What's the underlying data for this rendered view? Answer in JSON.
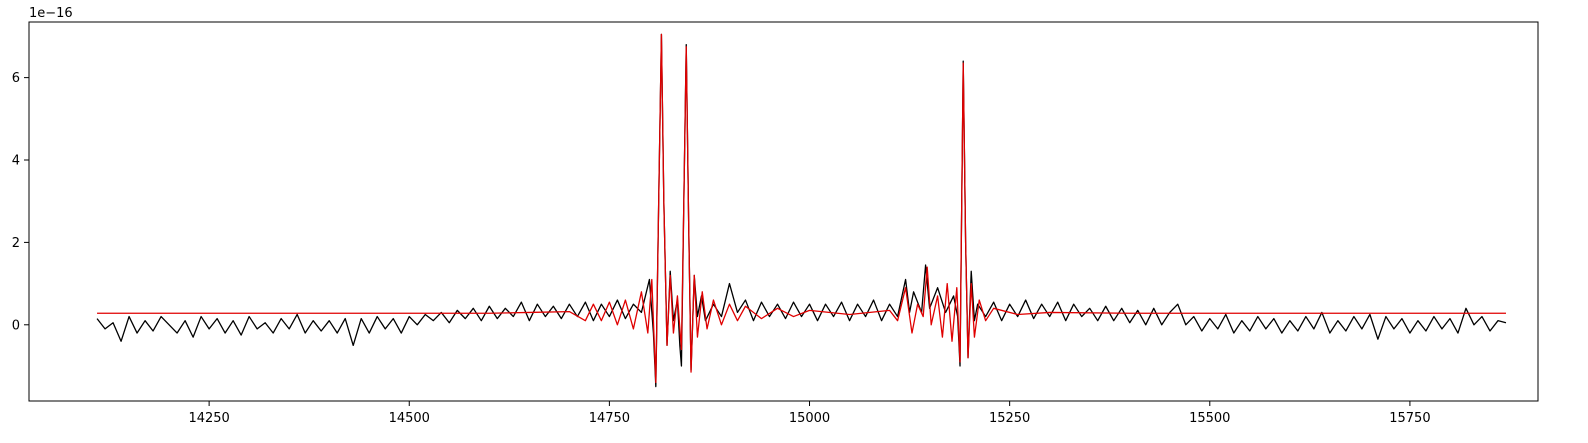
{
  "chart_data": {
    "type": "line",
    "title": "",
    "xlabel": "",
    "ylabel": "",
    "xlim": [
      14025,
      15910
    ],
    "ylim": [
      -1.85,
      7.35
    ],
    "y_offset_label": "1e−16",
    "x_ticks": [
      14250,
      14500,
      14750,
      15000,
      15250,
      15500,
      15750
    ],
    "x_tick_labels": [
      "14250",
      "14500",
      "14750",
      "15000",
      "15250",
      "15500",
      "15750"
    ],
    "y_ticks": [
      0,
      2,
      4,
      6
    ],
    "y_tick_labels": [
      "0",
      "2",
      "4",
      "6"
    ],
    "grid": false,
    "legend": "none",
    "series": [
      {
        "color": "#000000",
        "x_range": [
          14110,
          15870
        ],
        "points": [
          [
            14110,
            0.15
          ],
          [
            14120,
            -0.1
          ],
          [
            14130,
            0.05
          ],
          [
            14140,
            -0.4
          ],
          [
            14150,
            0.2
          ],
          [
            14160,
            -0.2
          ],
          [
            14170,
            0.1
          ],
          [
            14180,
            -0.15
          ],
          [
            14190,
            0.2
          ],
          [
            14200,
            0.0
          ],
          [
            14210,
            -0.2
          ],
          [
            14220,
            0.1
          ],
          [
            14230,
            -0.3
          ],
          [
            14240,
            0.2
          ],
          [
            14250,
            -0.1
          ],
          [
            14260,
            0.15
          ],
          [
            14270,
            -0.2
          ],
          [
            14280,
            0.1
          ],
          [
            14290,
            -0.25
          ],
          [
            14300,
            0.2
          ],
          [
            14310,
            -0.1
          ],
          [
            14320,
            0.05
          ],
          [
            14330,
            -0.2
          ],
          [
            14340,
            0.15
          ],
          [
            14350,
            -0.1
          ],
          [
            14360,
            0.25
          ],
          [
            14370,
            -0.2
          ],
          [
            14380,
            0.1
          ],
          [
            14390,
            -0.15
          ],
          [
            14400,
            0.1
          ],
          [
            14410,
            -0.2
          ],
          [
            14420,
            0.15
          ],
          [
            14430,
            -0.5
          ],
          [
            14440,
            0.15
          ],
          [
            14450,
            -0.2
          ],
          [
            14460,
            0.2
          ],
          [
            14470,
            -0.1
          ],
          [
            14480,
            0.15
          ],
          [
            14490,
            -0.2
          ],
          [
            14500,
            0.2
          ],
          [
            14510,
            0.0
          ],
          [
            14520,
            0.25
          ],
          [
            14530,
            0.1
          ],
          [
            14540,
            0.3
          ],
          [
            14550,
            0.05
          ],
          [
            14560,
            0.35
          ],
          [
            14570,
            0.15
          ],
          [
            14580,
            0.4
          ],
          [
            14590,
            0.1
          ],
          [
            14600,
            0.45
          ],
          [
            14610,
            0.15
          ],
          [
            14620,
            0.4
          ],
          [
            14630,
            0.2
          ],
          [
            14640,
            0.55
          ],
          [
            14650,
            0.1
          ],
          [
            14660,
            0.5
          ],
          [
            14670,
            0.2
          ],
          [
            14680,
            0.45
          ],
          [
            14690,
            0.15
          ],
          [
            14700,
            0.5
          ],
          [
            14710,
            0.2
          ],
          [
            14720,
            0.55
          ],
          [
            14730,
            0.1
          ],
          [
            14740,
            0.5
          ],
          [
            14750,
            0.2
          ],
          [
            14760,
            0.6
          ],
          [
            14770,
            0.15
          ],
          [
            14780,
            0.5
          ],
          [
            14790,
            0.3
          ],
          [
            14800,
            1.1
          ],
          [
            14805,
            -0.2
          ],
          [
            14808,
            -1.5
          ],
          [
            14812,
            3.5
          ],
          [
            14815,
            7.05
          ],
          [
            14818,
            3.0
          ],
          [
            14822,
            -0.5
          ],
          [
            14826,
            1.3
          ],
          [
            14830,
            0.1
          ],
          [
            14835,
            0.6
          ],
          [
            14838,
            -0.5
          ],
          [
            14840,
            -1.0
          ],
          [
            14843,
            3.0
          ],
          [
            14846,
            6.8
          ],
          [
            14849,
            2.5
          ],
          [
            14852,
            -1.1
          ],
          [
            14856,
            1.2
          ],
          [
            14860,
            0.2
          ],
          [
            14865,
            0.7
          ],
          [
            14870,
            0.1
          ],
          [
            14880,
            0.5
          ],
          [
            14890,
            0.2
          ],
          [
            14900,
            1.0
          ],
          [
            14910,
            0.3
          ],
          [
            14920,
            0.6
          ],
          [
            14930,
            0.1
          ],
          [
            14940,
            0.55
          ],
          [
            14950,
            0.2
          ],
          [
            14960,
            0.5
          ],
          [
            14970,
            0.15
          ],
          [
            14980,
            0.55
          ],
          [
            14990,
            0.2
          ],
          [
            15000,
            0.5
          ],
          [
            15010,
            0.1
          ],
          [
            15020,
            0.5
          ],
          [
            15030,
            0.2
          ],
          [
            15040,
            0.55
          ],
          [
            15050,
            0.1
          ],
          [
            15060,
            0.5
          ],
          [
            15070,
            0.2
          ],
          [
            15080,
            0.6
          ],
          [
            15090,
            0.1
          ],
          [
            15100,
            0.5
          ],
          [
            15110,
            0.2
          ],
          [
            15120,
            1.1
          ],
          [
            15125,
            0.3
          ],
          [
            15130,
            0.8
          ],
          [
            15140,
            0.3
          ],
          [
            15145,
            1.45
          ],
          [
            15150,
            0.4
          ],
          [
            15160,
            0.9
          ],
          [
            15170,
            0.3
          ],
          [
            15180,
            0.7
          ],
          [
            15185,
            0.2
          ],
          [
            15188,
            -1.0
          ],
          [
            15192,
            6.4
          ],
          [
            15195,
            2.0
          ],
          [
            15198,
            -0.8
          ],
          [
            15202,
            1.3
          ],
          [
            15206,
            0.1
          ],
          [
            15210,
            0.5
          ],
          [
            15220,
            0.2
          ],
          [
            15230,
            0.55
          ],
          [
            15240,
            0.1
          ],
          [
            15250,
            0.5
          ],
          [
            15260,
            0.2
          ],
          [
            15270,
            0.6
          ],
          [
            15280,
            0.15
          ],
          [
            15290,
            0.5
          ],
          [
            15300,
            0.2
          ],
          [
            15310,
            0.55
          ],
          [
            15320,
            0.1
          ],
          [
            15330,
            0.5
          ],
          [
            15340,
            0.2
          ],
          [
            15350,
            0.4
          ],
          [
            15360,
            0.1
          ],
          [
            15370,
            0.45
          ],
          [
            15380,
            0.1
          ],
          [
            15390,
            0.4
          ],
          [
            15400,
            0.05
          ],
          [
            15410,
            0.35
          ],
          [
            15420,
            0.0
          ],
          [
            15430,
            0.4
          ],
          [
            15440,
            0.0
          ],
          [
            15450,
            0.3
          ],
          [
            15460,
            0.5
          ],
          [
            15470,
            0.0
          ],
          [
            15480,
            0.2
          ],
          [
            15490,
            -0.15
          ],
          [
            15500,
            0.15
          ],
          [
            15510,
            -0.1
          ],
          [
            15520,
            0.25
          ],
          [
            15530,
            -0.2
          ],
          [
            15540,
            0.1
          ],
          [
            15550,
            -0.15
          ],
          [
            15560,
            0.2
          ],
          [
            15570,
            -0.1
          ],
          [
            15580,
            0.15
          ],
          [
            15590,
            -0.2
          ],
          [
            15600,
            0.1
          ],
          [
            15610,
            -0.15
          ],
          [
            15620,
            0.2
          ],
          [
            15630,
            -0.1
          ],
          [
            15640,
            0.3
          ],
          [
            15650,
            -0.2
          ],
          [
            15660,
            0.1
          ],
          [
            15670,
            -0.15
          ],
          [
            15680,
            0.2
          ],
          [
            15690,
            -0.1
          ],
          [
            15700,
            0.25
          ],
          [
            15710,
            -0.35
          ],
          [
            15720,
            0.2
          ],
          [
            15730,
            -0.1
          ],
          [
            15740,
            0.15
          ],
          [
            15750,
            -0.2
          ],
          [
            15760,
            0.1
          ],
          [
            15770,
            -0.15
          ],
          [
            15780,
            0.2
          ],
          [
            15790,
            -0.1
          ],
          [
            15800,
            0.15
          ],
          [
            15810,
            -0.2
          ],
          [
            15820,
            0.4
          ],
          [
            15830,
            0.0
          ],
          [
            15840,
            0.2
          ],
          [
            15850,
            -0.15
          ],
          [
            15860,
            0.1
          ],
          [
            15870,
            0.05
          ]
        ]
      },
      {
        "color": "#e00000",
        "x_range": [
          14110,
          15870
        ],
        "points": [
          [
            14110,
            0.28
          ],
          [
            14600,
            0.28
          ],
          [
            14650,
            0.3
          ],
          [
            14700,
            0.32
          ],
          [
            14720,
            0.1
          ],
          [
            14730,
            0.5
          ],
          [
            14740,
            0.1
          ],
          [
            14750,
            0.55
          ],
          [
            14760,
            0.0
          ],
          [
            14770,
            0.6
          ],
          [
            14780,
            -0.1
          ],
          [
            14790,
            0.8
          ],
          [
            14798,
            -0.2
          ],
          [
            14803,
            1.1
          ],
          [
            14808,
            -1.4
          ],
          [
            14812,
            3.5
          ],
          [
            14815,
            7.05
          ],
          [
            14818,
            3.0
          ],
          [
            14822,
            -0.5
          ],
          [
            14826,
            1.2
          ],
          [
            14830,
            -0.2
          ],
          [
            14835,
            0.7
          ],
          [
            14840,
            -0.6
          ],
          [
            14843,
            3.0
          ],
          [
            14846,
            6.75
          ],
          [
            14849,
            2.5
          ],
          [
            14852,
            -1.15
          ],
          [
            14856,
            1.2
          ],
          [
            14860,
            -0.3
          ],
          [
            14866,
            0.8
          ],
          [
            14872,
            -0.1
          ],
          [
            14880,
            0.6
          ],
          [
            14890,
            0.0
          ],
          [
            14900,
            0.5
          ],
          [
            14910,
            0.1
          ],
          [
            14920,
            0.45
          ],
          [
            14940,
            0.15
          ],
          [
            14960,
            0.4
          ],
          [
            14980,
            0.2
          ],
          [
            15000,
            0.35
          ],
          [
            15050,
            0.25
          ],
          [
            15100,
            0.35
          ],
          [
            15110,
            0.1
          ],
          [
            15120,
            0.9
          ],
          [
            15128,
            -0.2
          ],
          [
            15135,
            0.5
          ],
          [
            15142,
            0.2
          ],
          [
            15147,
            1.4
          ],
          [
            15152,
            0.0
          ],
          [
            15160,
            0.7
          ],
          [
            15166,
            -0.3
          ],
          [
            15172,
            1.0
          ],
          [
            15178,
            -0.4
          ],
          [
            15184,
            0.9
          ],
          [
            15188,
            -0.9
          ],
          [
            15192,
            6.35
          ],
          [
            15195,
            2.0
          ],
          [
            15198,
            -0.8
          ],
          [
            15202,
            1.0
          ],
          [
            15206,
            -0.3
          ],
          [
            15212,
            0.6
          ],
          [
            15220,
            0.1
          ],
          [
            15230,
            0.4
          ],
          [
            15260,
            0.25
          ],
          [
            15300,
            0.3
          ],
          [
            15400,
            0.28
          ],
          [
            15870,
            0.28
          ]
        ]
      }
    ]
  }
}
